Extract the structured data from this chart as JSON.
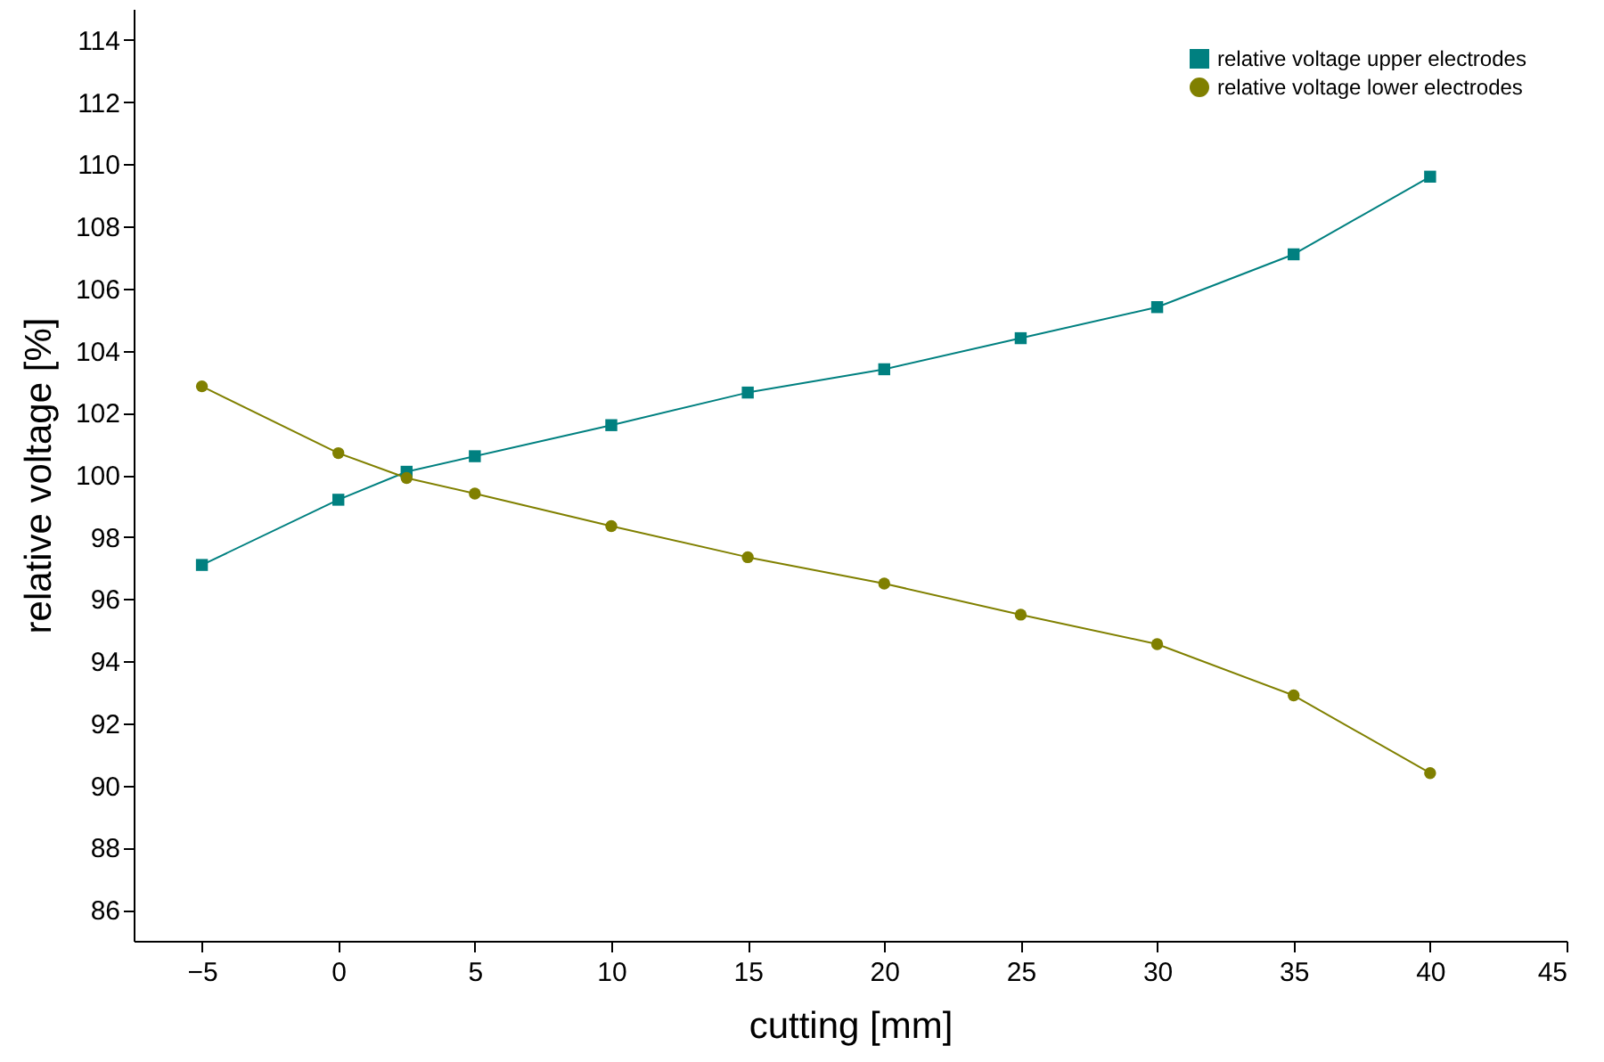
{
  "chart_data": {
    "type": "line",
    "xlabel": "cutting [mm]",
    "ylabel": "relative voltage [%]",
    "x": [
      -5,
      0,
      2.5,
      5,
      10,
      15,
      20,
      25,
      30,
      35,
      40
    ],
    "series": [
      {
        "name": "relative voltage upper electrodes",
        "color": "#008080",
        "marker": "square",
        "values": [
          97.1,
          99.2,
          100.1,
          100.6,
          101.6,
          102.65,
          103.4,
          104.4,
          105.4,
          107.1,
          109.6
        ]
      },
      {
        "name": "relative voltage lower electrodes",
        "color": "#808000",
        "marker": "circle",
        "values": [
          102.85,
          100.7,
          99.9,
          99.4,
          98.35,
          97.35,
          96.5,
          95.5,
          94.55,
          92.9,
          90.4
        ]
      }
    ],
    "xlim": [
      -7.5,
      45
    ],
    "xticks": [
      -5,
      0,
      5,
      10,
      15,
      20,
      25,
      30,
      35,
      40,
      45
    ],
    "ylim": [
      85,
      115
    ],
    "yticks": [
      86,
      88,
      90,
      92,
      94,
      96,
      98,
      100,
      102,
      104,
      106,
      108,
      110,
      112,
      114
    ],
    "grid": false,
    "legend": "top right",
    "line_style": "solid"
  }
}
